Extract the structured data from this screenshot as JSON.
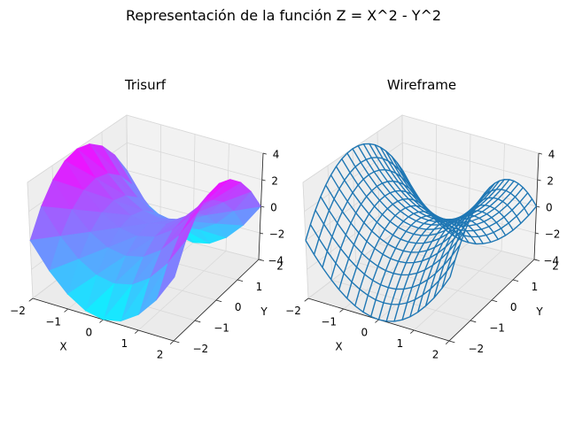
{
  "figure": {
    "title": "Representación de la función Z = X^2 - Y^2"
  },
  "chart_data": [
    {
      "type": "surface3d",
      "style": "trisurf",
      "title": "Trisurf",
      "function": "Z = X^2 - Y^2",
      "xlabel": "X",
      "ylabel": "Y",
      "zlabel": "",
      "xlim": [
        -2,
        2
      ],
      "ylim": [
        -2,
        2
      ],
      "zlim": [
        -4,
        4
      ],
      "xticks": [
        "−2",
        "−1",
        "0",
        "1",
        "2"
      ],
      "yticks": [
        "−2",
        "−1",
        "0",
        "1",
        "2"
      ],
      "zticks": [
        "−4",
        "−2",
        "0",
        "2",
        "4"
      ],
      "colormap": "cool",
      "colormap_low": "#00ffff",
      "colormap_high": "#ff00ff",
      "grid": true,
      "x": [
        -2,
        -1.5,
        -1,
        -0.5,
        0,
        0.5,
        1,
        1.5,
        2
      ],
      "y": [
        -2,
        -1.5,
        -1,
        -0.5,
        0,
        0.5,
        1,
        1.5,
        2
      ]
    },
    {
      "type": "surface3d",
      "style": "wireframe",
      "title": "Wireframe",
      "function": "Z = X^2 - Y^2",
      "xlabel": "X",
      "ylabel": "Y",
      "zlabel": "",
      "xlim": [
        -2,
        2
      ],
      "ylim": [
        -2,
        2
      ],
      "zlim": [
        -4,
        4
      ],
      "xticks": [
        "−2",
        "−1",
        "0",
        "1",
        "2"
      ],
      "yticks": [
        "−2",
        "−1",
        "0",
        "1",
        "2"
      ],
      "zticks": [
        "−4",
        "−2",
        "0",
        "2",
        "4"
      ],
      "line_color": "#1f77b4",
      "grid": true,
      "x": [
        -2,
        -1.78,
        -1.56,
        -1.33,
        -1.11,
        -0.89,
        -0.67,
        -0.44,
        -0.22,
        0,
        0.22,
        0.44,
        0.67,
        0.89,
        1.11,
        1.33,
        1.56,
        1.78,
        2
      ],
      "y": [
        -2,
        -1.78,
        -1.56,
        -1.33,
        -1.11,
        -0.89,
        -0.67,
        -0.44,
        -0.22,
        0,
        0.22,
        0.44,
        0.67,
        0.89,
        1.11,
        1.33,
        1.56,
        1.78,
        2
      ]
    }
  ]
}
